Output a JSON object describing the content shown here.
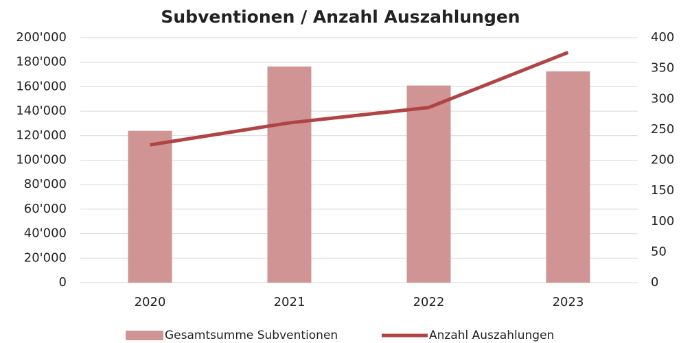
{
  "chart_data": {
    "type": "bar",
    "title": "Subventionen / Anzahl Auszahlungen",
    "categories": [
      "2020",
      "2021",
      "2022",
      "2023"
    ],
    "series": [
      {
        "name": "Gesamtsumme Subventionen",
        "type": "bar",
        "color": "#d09494",
        "values": [
          124000,
          176500,
          161000,
          172500
        ]
      },
      {
        "name": "Anzahl Auszahlungen",
        "type": "line",
        "axis": "y2",
        "color": "#b04444",
        "values": [
          225,
          261,
          286,
          376
        ]
      }
    ],
    "ylim": [
      0,
      200000
    ],
    "yticks": [
      0,
      {
        "value": 20000,
        "label": "20'000"
      },
      {
        "value": 40000,
        "label": "40'000"
      },
      {
        "value": 60000,
        "label": "60'000"
      },
      {
        "value": 80000,
        "label": "80'000"
      },
      {
        "value": 100000,
        "label": "100'000"
      },
      {
        "value": 120000,
        "label": "120'000"
      },
      {
        "value": 140000,
        "label": "140'000"
      },
      {
        "value": 160000,
        "label": "160'000"
      },
      {
        "value": 180000,
        "label": "180'000"
      },
      {
        "value": 200000,
        "label": "200'000"
      }
    ],
    "y2lim": [
      0,
      400
    ],
    "y2ticks": [
      0,
      50,
      100,
      150,
      200,
      250,
      300,
      350,
      400
    ],
    "grid": true,
    "legend": "bottom"
  }
}
